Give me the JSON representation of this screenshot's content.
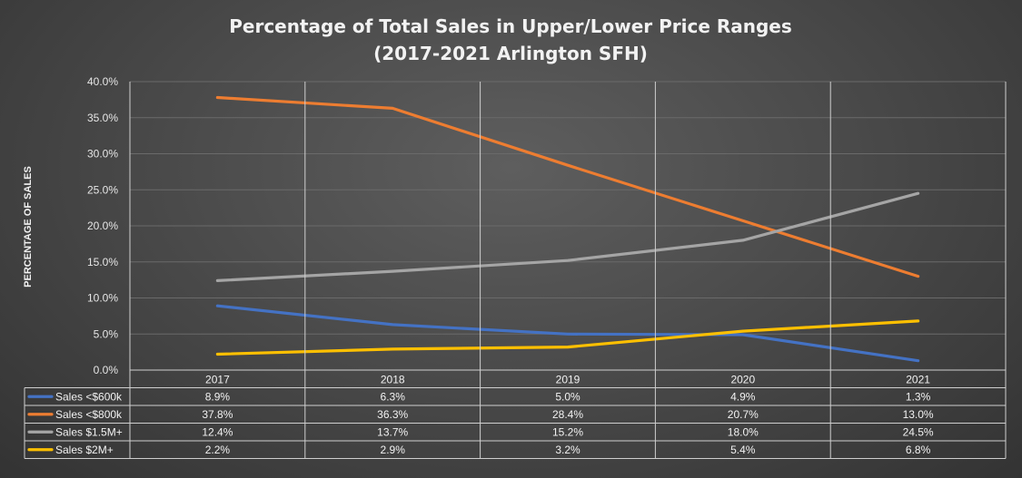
{
  "chart_data": {
    "type": "line",
    "title": "Percentage of Total Sales in Upper/Lower Price Ranges",
    "subtitle": "(2017-2021 Arlington SFH)",
    "ylabel": "PERCENTAGE OF SALES",
    "xlabel": "",
    "categories": [
      "2017",
      "2018",
      "2019",
      "2020",
      "2021"
    ],
    "ylim": [
      0,
      40
    ],
    "yticks": [
      "0.0%",
      "5.0%",
      "10.0%",
      "15.0%",
      "20.0%",
      "25.0%",
      "30.0%",
      "35.0%",
      "40.0%"
    ],
    "grid": true,
    "legend": "data-table-below",
    "series": [
      {
        "name": "Sales <$600k",
        "color": "#4472c4",
        "values": [
          8.9,
          6.3,
          5.0,
          4.9,
          1.3
        ],
        "labels": [
          "8.9%",
          "6.3%",
          "5.0%",
          "4.9%",
          "1.3%"
        ]
      },
      {
        "name": "Sales <$800k",
        "color": "#ed7d31",
        "values": [
          37.8,
          36.3,
          28.4,
          20.7,
          13.0
        ],
        "labels": [
          "37.8%",
          "36.3%",
          "28.4%",
          "20.7%",
          "13.0%"
        ]
      },
      {
        "name": "Sales $1.5M+",
        "color": "#a5a5a5",
        "values": [
          12.4,
          13.7,
          15.2,
          18.0,
          24.5
        ],
        "labels": [
          "12.4%",
          "13.7%",
          "15.2%",
          "18.0%",
          "24.5%"
        ]
      },
      {
        "name": "Sales $2M+",
        "color": "#ffc000",
        "values": [
          2.2,
          2.9,
          3.2,
          5.4,
          6.8
        ],
        "labels": [
          "2.2%",
          "2.9%",
          "3.2%",
          "5.4%",
          "6.8%"
        ]
      }
    ]
  }
}
